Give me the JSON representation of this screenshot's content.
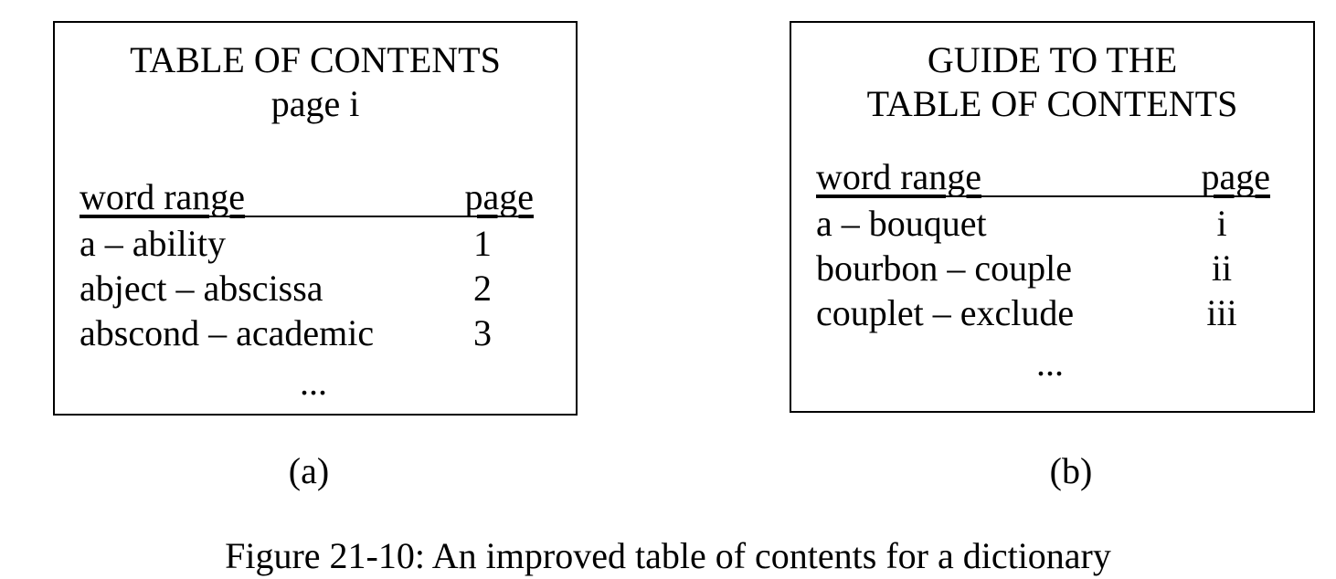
{
  "panel_a": {
    "title_lines": [
      "TABLE OF CONTENTS",
      "page i"
    ],
    "header": {
      "range": "word range",
      "page": "page"
    },
    "rows": [
      {
        "range": "a – ability",
        "page": "1"
      },
      {
        "range": "abject – abscissa",
        "page": "2"
      },
      {
        "range": "abscond – academic",
        "page": "3"
      }
    ],
    "ellipsis": "...",
    "label": "(a)"
  },
  "panel_b": {
    "title_lines": [
      "GUIDE TO THE",
      "TABLE OF CONTENTS"
    ],
    "header": {
      "range": "word range",
      "page": "page"
    },
    "rows": [
      {
        "range": "a – bouquet",
        "page": "i"
      },
      {
        "range": "bourbon – couple",
        "page": "ii"
      },
      {
        "range": "couplet – exclude",
        "page": "iii"
      }
    ],
    "ellipsis": "...",
    "label": "(b)"
  },
  "caption": "Figure 21-10:  An improved table of contents for a dictionary"
}
